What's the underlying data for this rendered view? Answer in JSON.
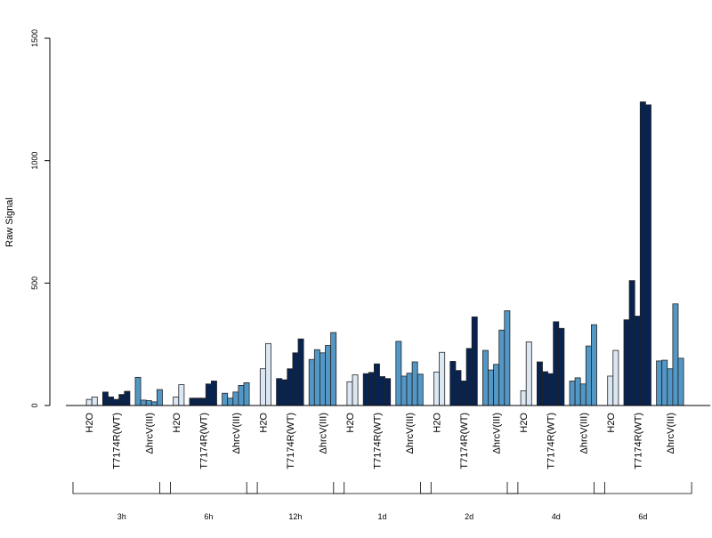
{
  "chart_data": {
    "type": "bar",
    "ylabel": "Raw Signal",
    "ylim": [
      0,
      1500
    ],
    "yticks": [
      0,
      500,
      1000,
      1500
    ],
    "grid": false,
    "legend": "none",
    "colors": {
      "H2O": "#dce7f4",
      "T7174R(WT)": "#08234f",
      "ΔhrcV(III)": "#5297c6",
      "stroke": "#222222"
    },
    "groups": [
      {
        "time": "3h",
        "treatments": [
          {
            "name": "H2O",
            "values": [
              0,
              25,
              35
            ]
          },
          {
            "name": "T7174R(WT)",
            "values": [
              55,
              35,
              25,
              45,
              58
            ]
          },
          {
            "name": "ΔhrcV(III)",
            "values": [
              115,
              22,
              20,
              15,
              65
            ]
          }
        ]
      },
      {
        "time": "6h",
        "treatments": [
          {
            "name": "H2O",
            "values": [
              0,
              35,
              85
            ]
          },
          {
            "name": "T7174R(WT)",
            "values": [
              30,
              30,
              30,
              88,
              100
            ]
          },
          {
            "name": "ΔhrcV(III)",
            "values": [
              50,
              30,
              55,
              82,
              93
            ]
          }
        ]
      },
      {
        "time": "12h",
        "treatments": [
          {
            "name": "H2O",
            "values": [
              0,
              150,
              253
            ]
          },
          {
            "name": "T7174R(WT)",
            "values": [
              110,
              105,
              150,
              215,
              272
            ]
          },
          {
            "name": "ΔhrcV(III)",
            "values": [
              188,
              228,
              215,
              245,
              298
            ]
          }
        ]
      },
      {
        "time": "1d",
        "treatments": [
          {
            "name": "H2O",
            "values": [
              0,
              97,
              125
            ]
          },
          {
            "name": "T7174R(WT)",
            "values": [
              130,
              135,
              170,
              118,
              110
            ]
          },
          {
            "name": "ΔhrcV(III)",
            "values": [
              262,
              120,
              132,
              178,
              128
            ]
          }
        ]
      },
      {
        "time": "2d",
        "treatments": [
          {
            "name": "H2O",
            "values": [
              0,
              137,
              217
            ]
          },
          {
            "name": "T7174R(WT)",
            "values": [
              180,
              143,
              100,
              233,
              362
            ]
          },
          {
            "name": "ΔhrcV(III)",
            "values": [
              225,
              145,
              168,
              308,
              387
            ]
          }
        ]
      },
      {
        "time": "4d",
        "treatments": [
          {
            "name": "H2O",
            "values": [
              0,
              60,
              260
            ]
          },
          {
            "name": "T7174R(WT)",
            "values": [
              178,
              138,
              130,
              342,
              315
            ]
          },
          {
            "name": "ΔhrcV(III)",
            "values": [
              100,
              113,
              88,
              243,
              330
            ]
          }
        ]
      },
      {
        "time": "6d",
        "treatments": [
          {
            "name": "H2O",
            "values": [
              0,
              120,
              225
            ]
          },
          {
            "name": "T7174R(WT)",
            "values": [
              350,
              510,
              365,
              1240,
              1228
            ]
          },
          {
            "name": "ΔhrcV(III)",
            "values": [
              182,
              185,
              150,
              415,
              193
            ]
          }
        ]
      }
    ]
  }
}
